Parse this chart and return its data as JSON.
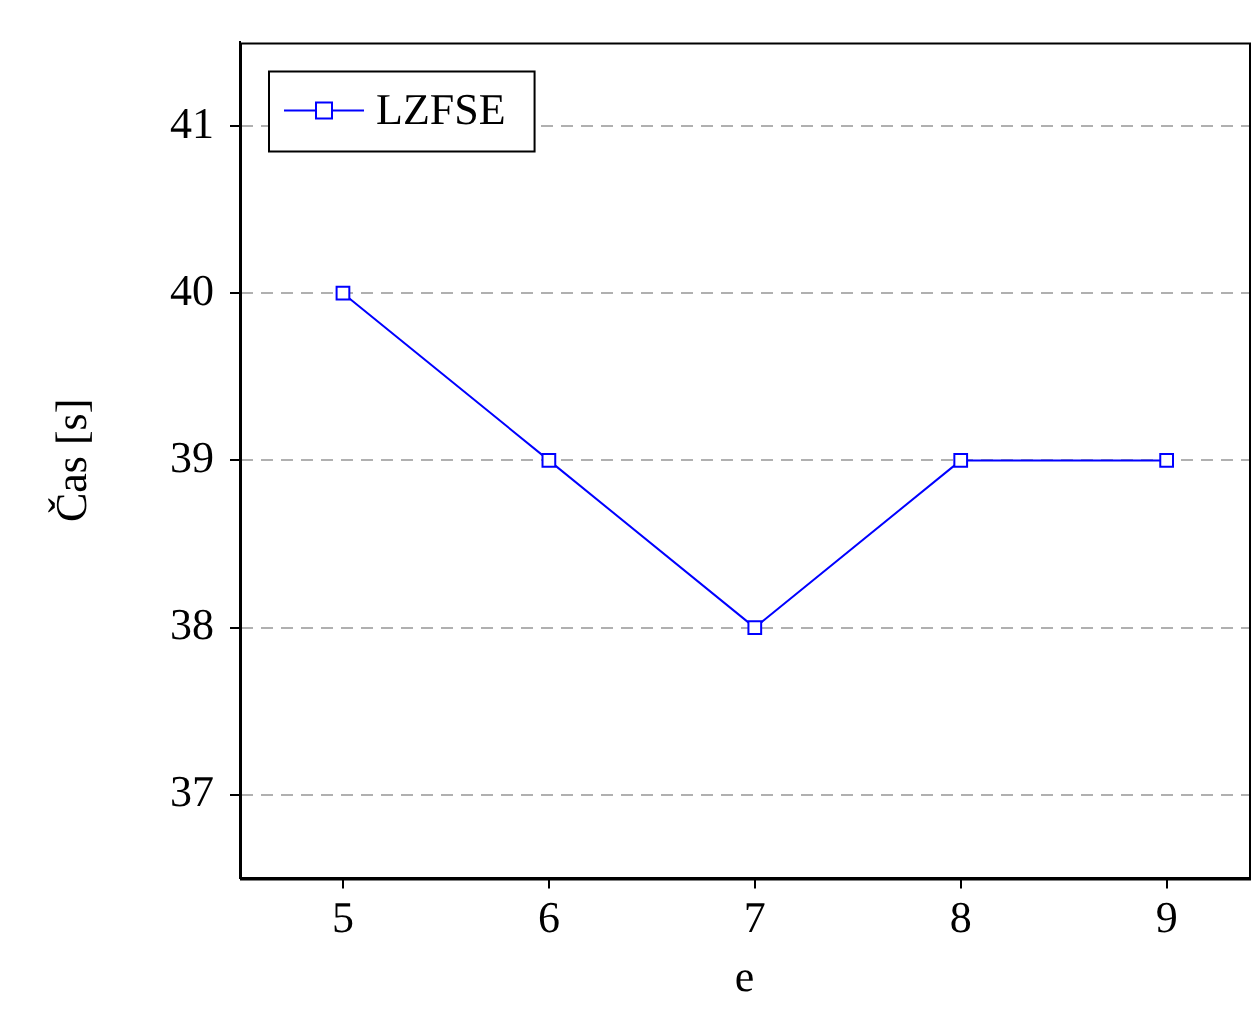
{
  "chart_data": {
    "type": "line",
    "xlabel": "e",
    "ylabel": "Čas [s]",
    "x": [
      5,
      6,
      7,
      8,
      9
    ],
    "series": [
      {
        "name": "LZFSE",
        "color": "#0000ff",
        "values": [
          40,
          39,
          38,
          39,
          39
        ]
      }
    ],
    "xlim": [
      4.5,
      9.4
    ],
    "xticks": [
      5,
      6,
      7,
      8,
      9
    ],
    "ylim": [
      36.5,
      41.5
    ],
    "yticks": [
      37,
      38,
      39,
      40,
      41
    ],
    "grid": "y",
    "line_style": "solid",
    "marker": "square",
    "legend": "top left"
  }
}
